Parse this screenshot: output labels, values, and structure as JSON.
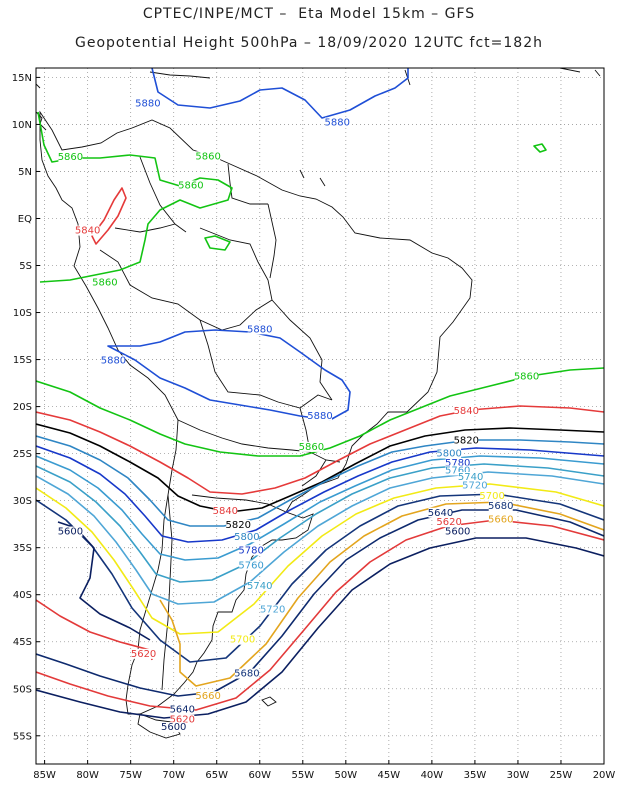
{
  "title": {
    "line1": "CPTEC/INPE/MCT –  Eta Model 15km – GFS",
    "line2": "Geopotential Height 500hPa – 18/09/2020 12UTC fct=182h"
  },
  "axes": {
    "lat_labels": [
      "15N",
      "10N",
      "5N",
      "EQ",
      "5S",
      "10S",
      "15S",
      "20S",
      "25S",
      "30S",
      "35S",
      "40S",
      "45S",
      "50S",
      "55S"
    ],
    "lon_labels": [
      "85W",
      "80W",
      "75W",
      "70W",
      "65W",
      "60W",
      "55W",
      "50W",
      "45W",
      "40W",
      "35W",
      "30W",
      "25W",
      "20W"
    ],
    "lat_range": [
      16,
      -58
    ],
    "lon_range": [
      -86,
      -20
    ],
    "grid": "dotted"
  },
  "contour_colors": {
    "5880": "#1f4fd6",
    "5860": "#13c413",
    "5840": "#e53a3a",
    "5820": "#000000",
    "5800": "#2f86c4",
    "5780": "#1738c9",
    "5760": "#3a9bd0",
    "5740": "#3aa0c8",
    "5720": "#4fa6d6",
    "5700": "#f2ea16",
    "5680": "#14357a",
    "5660": "#e3a51e",
    "5640": "#0e2a6e",
    "5620": "#e33a3a",
    "5600": "#0b1f60"
  },
  "contour_labels": [
    {
      "text": "5880",
      "level": "5880",
      "lon": -73,
      "lat": 12.0
    },
    {
      "text": "5880",
      "level": "5880",
      "lon": -51,
      "lat": 10.0
    },
    {
      "text": "5860",
      "level": "5860",
      "lon": -82,
      "lat": 6.3
    },
    {
      "text": "5860",
      "level": "5860",
      "lon": -66,
      "lat": 6.4
    },
    {
      "text": "5860",
      "level": "5860",
      "lon": -68,
      "lat": 3.3
    },
    {
      "text": "5840",
      "level": "5840",
      "lon": -80,
      "lat": -1.5
    },
    {
      "text": "5860",
      "level": "5860",
      "lon": -78,
      "lat": -7.0
    },
    {
      "text": "5880",
      "level": "5880",
      "lon": -60,
      "lat": -12.0
    },
    {
      "text": "5880",
      "level": "5880",
      "lon": -77,
      "lat": -15.3
    },
    {
      "text": "5860",
      "level": "5860",
      "lon": -29,
      "lat": -17.0
    },
    {
      "text": "5880",
      "level": "5880",
      "lon": -53,
      "lat": -21.2
    },
    {
      "text": "5840",
      "level": "5840",
      "lon": -36,
      "lat": -20.7
    },
    {
      "text": "5860",
      "level": "5860",
      "lon": -54,
      "lat": -24.5
    },
    {
      "text": "5820",
      "level": "5820",
      "lon": -36,
      "lat": -23.8
    },
    {
      "text": "5800",
      "level": "5800",
      "lon": -38,
      "lat": -25.2
    },
    {
      "text": "5780",
      "level": "5780",
      "lon": -37,
      "lat": -26.2
    },
    {
      "text": "5760",
      "level": "5760",
      "lon": -37,
      "lat": -27.0
    },
    {
      "text": "5740",
      "level": "5740",
      "lon": -35.5,
      "lat": -27.7
    },
    {
      "text": "5720",
      "level": "5720",
      "lon": -35,
      "lat": -28.6
    },
    {
      "text": "5700",
      "level": "5700",
      "lon": -33,
      "lat": -29.7
    },
    {
      "text": "5680",
      "level": "5680",
      "lon": -32,
      "lat": -30.8
    },
    {
      "text": "5660",
      "level": "5660",
      "lon": -32,
      "lat": -32.2
    },
    {
      "text": "5640",
      "level": "5640",
      "lon": -39,
      "lat": -31.5
    },
    {
      "text": "5620",
      "level": "5620",
      "lon": -38,
      "lat": -32.5
    },
    {
      "text": "5600",
      "level": "5600",
      "lon": -37,
      "lat": -33.5
    },
    {
      "text": "5840",
      "level": "5840",
      "lon": -64,
      "lat": -31.3
    },
    {
      "text": "5820",
      "level": "5820",
      "lon": -62.5,
      "lat": -32.8
    },
    {
      "text": "5800",
      "level": "5800",
      "lon": -61.5,
      "lat": -34.1
    },
    {
      "text": "5780",
      "level": "5780",
      "lon": -61,
      "lat": -35.5
    },
    {
      "text": "5760",
      "level": "5760",
      "lon": -61,
      "lat": -37.1
    },
    {
      "text": "5740",
      "level": "5740",
      "lon": -60,
      "lat": -39.3
    },
    {
      "text": "5720",
      "level": "5720",
      "lon": -58.5,
      "lat": -41.8
    },
    {
      "text": "5700",
      "level": "5700",
      "lon": -62,
      "lat": -45.0
    },
    {
      "text": "5680",
      "level": "5680",
      "lon": -61.5,
      "lat": -48.6
    },
    {
      "text": "5660",
      "level": "5660",
      "lon": -66,
      "lat": -51.0
    },
    {
      "text": "5640",
      "level": "5640",
      "lon": -69,
      "lat": -52.4
    },
    {
      "text": "5620",
      "level": "5620",
      "lon": -69,
      "lat": -53.5
    },
    {
      "text": "5600",
      "level": "5600",
      "lon": -70,
      "lat": -54.3
    },
    {
      "text": "5620",
      "level": "5620",
      "lon": -73.5,
      "lat": -46.5
    },
    {
      "text": "5600",
      "level": "5600",
      "lon": -82,
      "lat": -33.5
    }
  ]
}
